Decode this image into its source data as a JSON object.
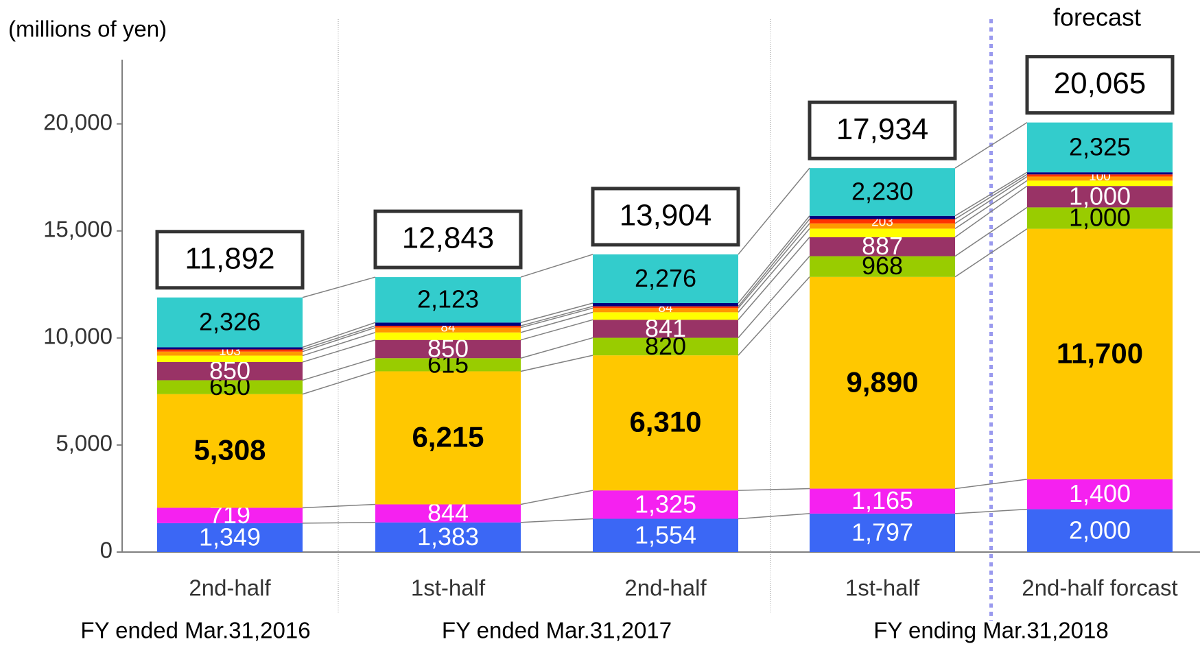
{
  "chart_data": {
    "type": "stacked_bar",
    "unit_label": "(millions of yen)",
    "annotation": "forecast",
    "categories": [
      "2nd-half",
      "1st-half",
      "2nd-half",
      "1st-half",
      "2nd-half forcast"
    ],
    "groups": [
      {
        "label": "FY ended Mar.31,2016",
        "span": [
          0,
          0
        ]
      },
      {
        "label": "FY ended Mar.31,2017",
        "span": [
          1,
          2
        ]
      },
      {
        "label": "FY ending Mar.31,2018",
        "span": [
          3,
          4
        ]
      }
    ],
    "series": [
      {
        "color": "#3b67f5",
        "label_color": "#ffffff",
        "values": [
          1349,
          1383,
          1554,
          1797,
          2000
        ],
        "value_labels": [
          "1,349",
          "1,383",
          "1,554",
          "1,797",
          "2,000"
        ]
      },
      {
        "color": "#f521f0",
        "label_color": "#ffffff",
        "values": [
          719,
          844,
          1325,
          1165,
          1400
        ],
        "value_labels": [
          "719",
          "844",
          "1,325",
          "1,165",
          "1,400"
        ]
      },
      {
        "color": "#ffc800",
        "label_color": "#000000",
        "bold": true,
        "values": [
          5308,
          6215,
          6310,
          9890,
          11700
        ],
        "value_labels": [
          "5,308",
          "6,215",
          "6,310",
          "9,890",
          "11,700"
        ]
      },
      {
        "color": "#99cc00",
        "label_color": "#000000",
        "values": [
          650,
          615,
          820,
          968,
          1000
        ],
        "value_labels": [
          "650",
          "615",
          "820",
          "968",
          "1,000"
        ]
      },
      {
        "color": "#993366",
        "label_color": "#ffffff",
        "values": [
          850,
          850,
          841,
          887,
          1000
        ],
        "value_labels": [
          "850",
          "850",
          "841",
          "887",
          "1,000"
        ]
      },
      {
        "color": "#ffff00",
        "values": [
          300,
          350,
          350,
          400,
          250
        ]
      },
      {
        "color": "#ff9900",
        "values": [
          187,
          229,
          194,
          244,
          190
        ]
      },
      {
        "color": "#ff3300",
        "label_color": "#ffffff",
        "small": true,
        "values": [
          103,
          84,
          84,
          203,
          100
        ],
        "value_labels": [
          "103",
          "84",
          "84",
          "203",
          "100"
        ]
      },
      {
        "color": "#000080",
        "values": [
          100,
          150,
          150,
          150,
          100
        ]
      },
      {
        "color": "#33cccc",
        "label_color": "#000000",
        "values": [
          2326,
          2123,
          2276,
          2230,
          2325
        ],
        "value_labels": [
          "2,326",
          "2,123",
          "2,276",
          "2,230",
          "2,325"
        ]
      }
    ],
    "totals": [
      11892,
      12843,
      13904,
      17934,
      20065
    ],
    "total_labels": [
      "11,892",
      "12,843",
      "13,904",
      "17,934",
      "20,065"
    ],
    "ylim": [
      0,
      23000
    ],
    "yticks": [
      0,
      {
        "value": 5000,
        "label": "5,000"
      },
      {
        "value": 10000,
        "label": "10,000"
      },
      {
        "value": 15000,
        "label": "15,000"
      },
      {
        "value": 20000,
        "label": "20,000"
      }
    ],
    "forecast_from": 4
  }
}
